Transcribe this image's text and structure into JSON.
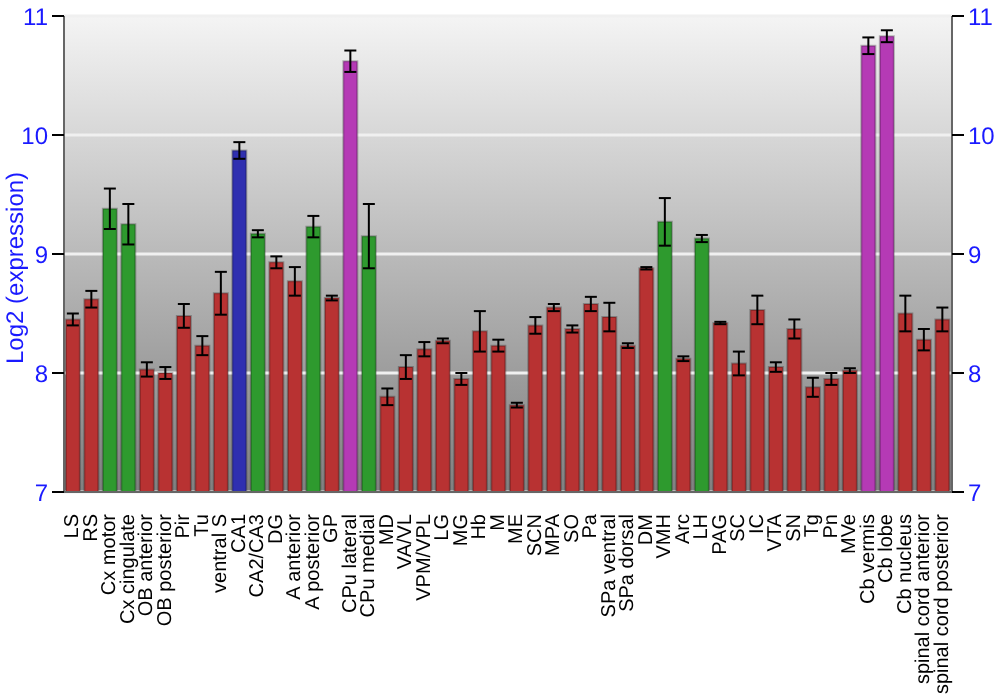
{
  "chart_data": {
    "type": "bar",
    "ylabel": "Log2 (expression)",
    "categories": [
      "LS",
      "RS",
      "Cx motor",
      "Cx cingulate",
      "OB anterior",
      "OB posterior",
      "Pir",
      "Tu",
      "ventral S",
      "CA1",
      "CA2/CA3",
      "DG",
      "A anterior",
      "A posterior",
      "GP",
      "CPu lateral",
      "CPu medial",
      "MD",
      "VA/VL",
      "VPM/VPL",
      "LG",
      "MG",
      "Hb",
      "M",
      "ME",
      "SCN",
      "MPA",
      "SO",
      "Pa",
      "SPa ventral",
      "SPa dorsal",
      "DM",
      "VMH",
      "Arc",
      "LH",
      "PAG",
      "SC",
      "IC",
      "VTA",
      "SN",
      "Tg",
      "Pn",
      "MVe",
      "Cb vermis",
      "Cb lobe",
      "Cb nucleus",
      "spinal cord anterior",
      "spinal cord posterior"
    ],
    "values": [
      8.45,
      8.62,
      9.38,
      9.25,
      8.03,
      8.0,
      8.48,
      8.23,
      8.67,
      9.87,
      9.17,
      8.93,
      8.77,
      9.23,
      8.63,
      10.62,
      9.15,
      7.8,
      8.05,
      8.2,
      8.27,
      7.95,
      8.35,
      8.23,
      7.73,
      8.4,
      8.55,
      8.37,
      8.58,
      8.47,
      8.23,
      8.88,
      9.27,
      8.12,
      9.13,
      8.42,
      8.08,
      8.53,
      8.05,
      8.37,
      7.88,
      7.95,
      8.02,
      10.75,
      10.83,
      8.5,
      8.28,
      8.45
    ],
    "errors": [
      0.05,
      0.07,
      0.17,
      0.17,
      0.06,
      0.05,
      0.1,
      0.08,
      0.18,
      0.07,
      0.03,
      0.05,
      0.12,
      0.09,
      0.02,
      0.09,
      0.27,
      0.07,
      0.1,
      0.06,
      0.02,
      0.05,
      0.17,
      0.05,
      0.02,
      0.07,
      0.03,
      0.03,
      0.06,
      0.12,
      0.02,
      0.01,
      0.2,
      0.02,
      0.03,
      0.01,
      0.1,
      0.12,
      0.04,
      0.08,
      0.08,
      0.05,
      0.02,
      0.07,
      0.05,
      0.15,
      0.09,
      0.1
    ],
    "colors": [
      "#b83232",
      "#b83232",
      "#2e9a2e",
      "#2e9a2e",
      "#b83232",
      "#b83232",
      "#b83232",
      "#b83232",
      "#b83232",
      "#2f2fb0",
      "#2e9a2e",
      "#b83232",
      "#b83232",
      "#2e9a2e",
      "#b83232",
      "#b53ab5",
      "#2e9a2e",
      "#b83232",
      "#b83232",
      "#b83232",
      "#b83232",
      "#b83232",
      "#b83232",
      "#b83232",
      "#b83232",
      "#b83232",
      "#b83232",
      "#b83232",
      "#b83232",
      "#b83232",
      "#b83232",
      "#b83232",
      "#2e9a2e",
      "#b83232",
      "#2e9a2e",
      "#b83232",
      "#b83232",
      "#b83232",
      "#b83232",
      "#b83232",
      "#b83232",
      "#b83232",
      "#b83232",
      "#b53ab5",
      "#b53ab5",
      "#b83232",
      "#b83232",
      "#b83232"
    ],
    "ylim": [
      7,
      11
    ],
    "yticks": [
      7,
      8,
      9,
      10,
      11
    ],
    "y2lim": [
      7,
      11
    ],
    "y2ticks": [
      7,
      8,
      9,
      10,
      11
    ],
    "grid": "y"
  }
}
